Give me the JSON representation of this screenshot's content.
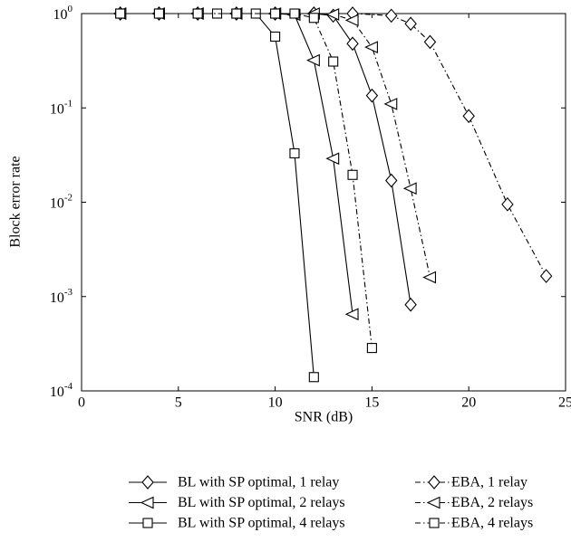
{
  "chart_data": {
    "type": "line",
    "x_label": "SNR (dB)",
    "y_label": "Block error rate",
    "log_y": true,
    "grid": false,
    "xlim": [
      0,
      25
    ],
    "xticks": [
      0,
      5,
      10,
      15,
      20,
      25
    ],
    "ylim": [
      0.0001,
      1
    ],
    "yticks": [
      {
        "value": 0.0001,
        "label": "10^-4"
      },
      {
        "value": 0.001,
        "label": "10^-3"
      },
      {
        "value": 0.01,
        "label": "10^-2"
      },
      {
        "value": 0.1,
        "label": "10^-1"
      },
      {
        "value": 1,
        "label": "10^0"
      }
    ],
    "series": [
      {
        "name": "BL with SP optimal, 1 relay",
        "color": "#000000",
        "dash": "solid",
        "marker": "diamond",
        "x": [
          2,
          4,
          6,
          8,
          10,
          12,
          13,
          14,
          15,
          16,
          17
        ],
        "values": [
          1,
          1,
          1,
          1,
          1,
          1,
          0.95,
          0.48,
          0.135,
          0.017,
          0.00082
        ]
      },
      {
        "name": "BL with SP optimal, 2 relays",
        "color": "#000000",
        "dash": "solid",
        "marker": "triangle-left",
        "x": [
          2,
          4,
          6,
          8,
          10,
          11,
          12,
          13,
          14
        ],
        "values": [
          1,
          1,
          1,
          1,
          1,
          0.97,
          0.32,
          0.029,
          0.00065
        ]
      },
      {
        "name": "BL with SP optimal, 4 relays",
        "color": "#000000",
        "dash": "solid",
        "marker": "square",
        "x": [
          2,
          4,
          6,
          7,
          8,
          9,
          10,
          11,
          12
        ],
        "values": [
          1,
          1,
          1,
          1,
          1,
          1,
          0.57,
          0.033,
          0.00014
        ]
      },
      {
        "name": "EBA, 1 relay",
        "color": "#000000",
        "dash": "dashdot",
        "marker": "diamond",
        "x": [
          2,
          4,
          6,
          8,
          10,
          12,
          14,
          16,
          17,
          18,
          20,
          22,
          24
        ],
        "values": [
          1,
          1,
          1,
          1,
          1,
          1,
          1,
          0.95,
          0.78,
          0.5,
          0.082,
          0.0095,
          0.00165
        ]
      },
      {
        "name": "EBA, 2 relays",
        "color": "#000000",
        "dash": "dashdot",
        "marker": "triangle-left",
        "x": [
          2,
          4,
          6,
          8,
          10,
          12,
          13,
          14,
          15,
          16,
          17,
          18
        ],
        "values": [
          1,
          1,
          1,
          1,
          1,
          1,
          0.98,
          0.85,
          0.44,
          0.11,
          0.014,
          0.0016
        ]
      },
      {
        "name": "EBA, 4 relays",
        "color": "#000000",
        "dash": "dashdot",
        "marker": "square",
        "x": [
          2,
          4,
          6,
          8,
          10,
          11,
          12,
          13,
          14,
          15
        ],
        "values": [
          1,
          1,
          1,
          1,
          1,
          1,
          0.9,
          0.31,
          0.0195,
          0.000285
        ]
      }
    ]
  }
}
